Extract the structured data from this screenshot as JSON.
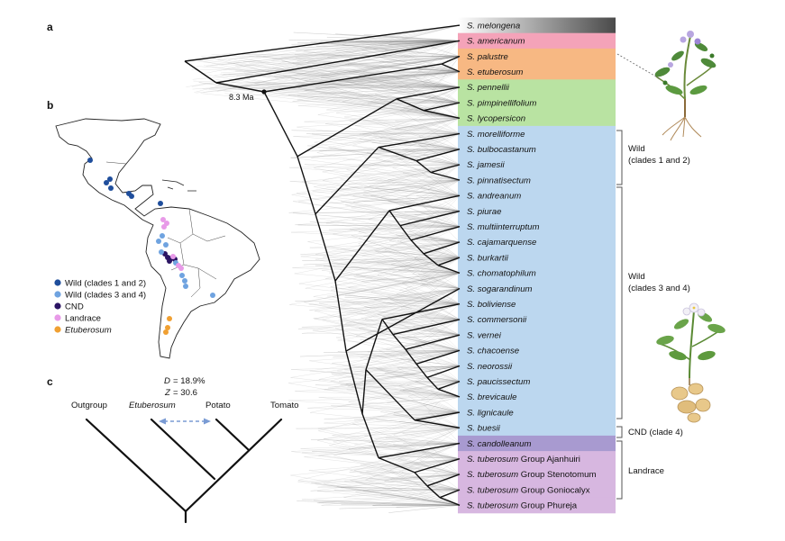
{
  "panels": {
    "a": "a",
    "b": "b",
    "c": "c"
  },
  "node_age_label": "8.3 Ma",
  "taxa": [
    {
      "genus": "S.",
      "species": "melongena",
      "suffix": "",
      "band": "#6b6b6b"
    },
    {
      "genus": "S.",
      "species": "americanum",
      "suffix": "",
      "band": "#f4a3b9"
    },
    {
      "genus": "S.",
      "species": "palustre",
      "suffix": "",
      "band": "#f7b883"
    },
    {
      "genus": "S.",
      "species": "etuberosum",
      "suffix": "",
      "band": "#f7b883"
    },
    {
      "genus": "S.",
      "species": "pennellii",
      "suffix": "",
      "band": "#b9e3a2"
    },
    {
      "genus": "S.",
      "species": "pimpinellifolium",
      "suffix": "",
      "band": "#b9e3a2"
    },
    {
      "genus": "S.",
      "species": "lycopersicon",
      "suffix": "",
      "band": "#b9e3a2"
    },
    {
      "genus": "S.",
      "species": "morelliforme",
      "suffix": "",
      "band": "#bcd7ef"
    },
    {
      "genus": "S.",
      "species": "bulbocastanum",
      "suffix": "",
      "band": "#bcd7ef"
    },
    {
      "genus": "S.",
      "species": "jamesii",
      "suffix": "",
      "band": "#bcd7ef"
    },
    {
      "genus": "S.",
      "species": "pinnatisectum",
      "suffix": "",
      "band": "#bcd7ef"
    },
    {
      "genus": "S.",
      "species": "andreanum",
      "suffix": "",
      "band": "#bcd7ef"
    },
    {
      "genus": "S.",
      "species": "piurae",
      "suffix": "",
      "band": "#bcd7ef"
    },
    {
      "genus": "S.",
      "species": "multiinterruptum",
      "suffix": "",
      "band": "#bcd7ef"
    },
    {
      "genus": "S.",
      "species": "cajamarquense",
      "suffix": "",
      "band": "#bcd7ef"
    },
    {
      "genus": "S.",
      "species": "burkartii",
      "suffix": "",
      "band": "#bcd7ef"
    },
    {
      "genus": "S.",
      "species": "chomatophilum",
      "suffix": "",
      "band": "#bcd7ef"
    },
    {
      "genus": "S.",
      "species": "sogarandinum",
      "suffix": "",
      "band": "#bcd7ef"
    },
    {
      "genus": "S.",
      "species": "boliviense",
      "suffix": "",
      "band": "#bcd7ef"
    },
    {
      "genus": "S.",
      "species": "commersonii",
      "suffix": "",
      "band": "#bcd7ef"
    },
    {
      "genus": "S.",
      "species": "vernei",
      "suffix": "",
      "band": "#bcd7ef"
    },
    {
      "genus": "S.",
      "species": "chacoense",
      "suffix": "",
      "band": "#bcd7ef"
    },
    {
      "genus": "S.",
      "species": "neorossii",
      "suffix": "",
      "band": "#bcd7ef"
    },
    {
      "genus": "S.",
      "species": "paucissectum",
      "suffix": "",
      "band": "#bcd7ef"
    },
    {
      "genus": "S.",
      "species": "brevicaule",
      "suffix": "",
      "band": "#bcd7ef"
    },
    {
      "genus": "S.",
      "species": "lignicaule",
      "suffix": "",
      "band": "#bcd7ef"
    },
    {
      "genus": "S.",
      "species": "buesii",
      "suffix": "",
      "band": "#bcd7ef"
    },
    {
      "genus": "S.",
      "species": "candolleanum",
      "suffix": "",
      "band": "#a89ad0"
    },
    {
      "genus": "S.",
      "species": "tuberosum",
      "suffix": "Group Ajanhuiri",
      "band": "#d7b7e0"
    },
    {
      "genus": "S.",
      "species": "tuberosum",
      "suffix": "Group Stenotomum",
      "band": "#d7b7e0"
    },
    {
      "genus": "S.",
      "species": "tuberosum",
      "suffix": "Group Goniocalyx",
      "band": "#d7b7e0"
    },
    {
      "genus": "S.",
      "species": "tuberosum",
      "suffix": "Group Phureja",
      "band": "#d7b7e0"
    }
  ],
  "clade_brackets": [
    {
      "line1": "Wild",
      "line2": "(clades 1 and 2)"
    },
    {
      "line1": "Wild",
      "line2": "(clades 3 and 4)"
    },
    {
      "line1": "CND (clade 4)",
      "line2": ""
    },
    {
      "line1": "Landrace",
      "line2": ""
    }
  ],
  "map_legend": [
    {
      "label": "Wild (clades 1 and 2)",
      "color": "#1f4e9c",
      "italic": false
    },
    {
      "label": "Wild (clades 3 and 4)",
      "color": "#6fa3e0",
      "italic": false
    },
    {
      "label": "CND",
      "color": "#2b1463",
      "italic": false
    },
    {
      "label": "Landrace",
      "color": "#e89ae8",
      "italic": false
    },
    {
      "label": "Etuberosum",
      "color": "#f0a032",
      "italic": true
    }
  ],
  "panel_c": {
    "d_stat": "= 18.9%",
    "z_stat": "= 30.6",
    "d_symbol": "D",
    "z_symbol": "Z",
    "tips": [
      "Outgroup",
      "Etuberosum",
      "Potato",
      "Tomato"
    ]
  },
  "colors": {
    "tree": "#111111",
    "arrow": "#7a9bd4",
    "shadow": "#8a8a8a"
  }
}
